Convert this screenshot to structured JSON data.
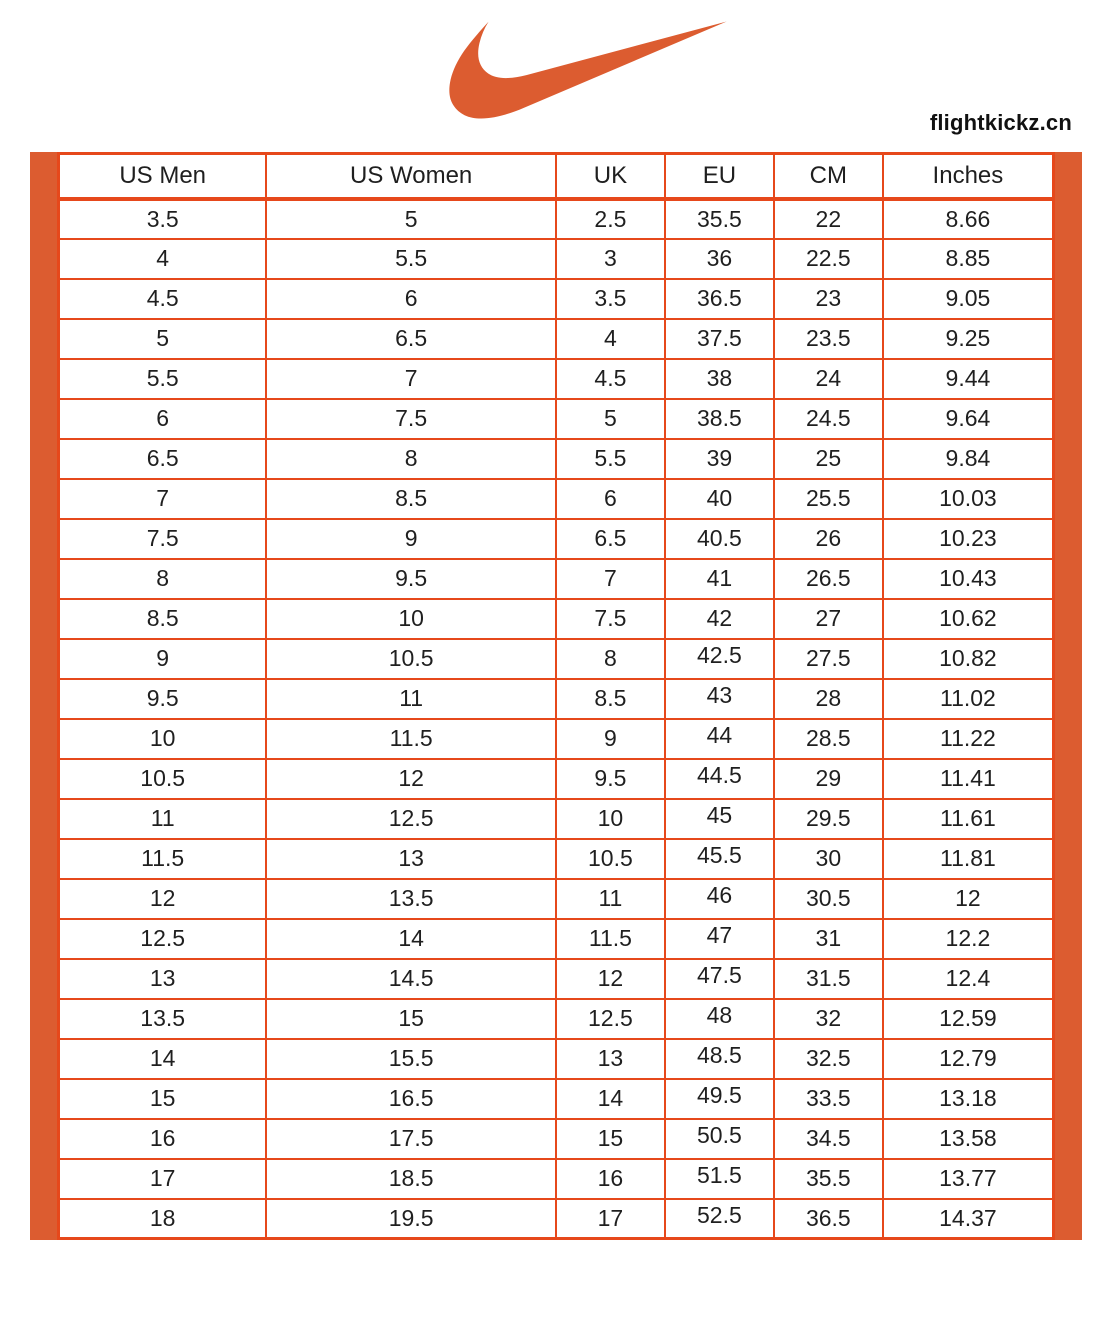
{
  "brand": {
    "logo_icon": "nike-swoosh-icon",
    "watermark": "flightkickz.cn"
  },
  "theme": {
    "accent_color": "#DC5C30",
    "table_border_color": "#E6481B",
    "text_color": "#1f1f1f",
    "background_color": "#ffffff"
  },
  "chart_data": {
    "type": "table",
    "columns": [
      "US Men",
      "US Women",
      "UK",
      "EU",
      "CM",
      "Inches"
    ],
    "rows": [
      [
        "3.5",
        "5",
        "2.5",
        "35.5",
        "22",
        "8.66"
      ],
      [
        "4",
        "5.5",
        "3",
        "36",
        "22.5",
        "8.85"
      ],
      [
        "4.5",
        "6",
        "3.5",
        "36.5",
        "23",
        "9.05"
      ],
      [
        "5",
        "6.5",
        "4",
        "37.5",
        "23.5",
        "9.25"
      ],
      [
        "5.5",
        "7",
        "4.5",
        "38",
        "24",
        "9.44"
      ],
      [
        "6",
        "7.5",
        "5",
        "38.5",
        "24.5",
        "9.64"
      ],
      [
        "6.5",
        "8",
        "5.5",
        "39",
        "25",
        "9.84"
      ],
      [
        "7",
        "8.5",
        "6",
        "40",
        "25.5",
        "10.03"
      ],
      [
        "7.5",
        "9",
        "6.5",
        "40.5",
        "26",
        "10.23"
      ],
      [
        "8",
        "9.5",
        "7",
        "41",
        "26.5",
        "10.43"
      ],
      [
        "8.5",
        "10",
        "7.5",
        "42",
        "27",
        "10.62"
      ],
      [
        "9",
        "10.5",
        "8",
        "42.5",
        "27.5",
        "10.82"
      ],
      [
        "9.5",
        "11",
        "8.5",
        "43",
        "28",
        "11.02"
      ],
      [
        "10",
        "11.5",
        "9",
        "44",
        "28.5",
        "11.22"
      ],
      [
        "10.5",
        "12",
        "9.5",
        "44.5",
        "29",
        "11.41"
      ],
      [
        "11",
        "12.5",
        "10",
        "45",
        "29.5",
        "11.61"
      ],
      [
        "11.5",
        "13",
        "10.5",
        "45.5",
        "30",
        "11.81"
      ],
      [
        "12",
        "13.5",
        "11",
        "46",
        "30.5",
        "12"
      ],
      [
        "12.5",
        "14",
        "11.5",
        "47",
        "31",
        "12.2"
      ],
      [
        "13",
        "14.5",
        "12",
        "47.5",
        "31.5",
        "12.4"
      ],
      [
        "13.5",
        "15",
        "12.5",
        "48",
        "32",
        "12.59"
      ],
      [
        "14",
        "15.5",
        "13",
        "48.5",
        "32.5",
        "12.79"
      ],
      [
        "15",
        "16.5",
        "14",
        "49.5",
        "33.5",
        "13.18"
      ],
      [
        "16",
        "17.5",
        "15",
        "50.5",
        "34.5",
        "13.58"
      ],
      [
        "17",
        "18.5",
        "16",
        "51.5",
        "35.5",
        "13.77"
      ],
      [
        "18",
        "19.5",
        "17",
        "52.5",
        "36.5",
        "14.37"
      ]
    ],
    "eu_raised_from_row_index": 11,
    "layout": {
      "grid": "on",
      "legend": "none"
    }
  }
}
